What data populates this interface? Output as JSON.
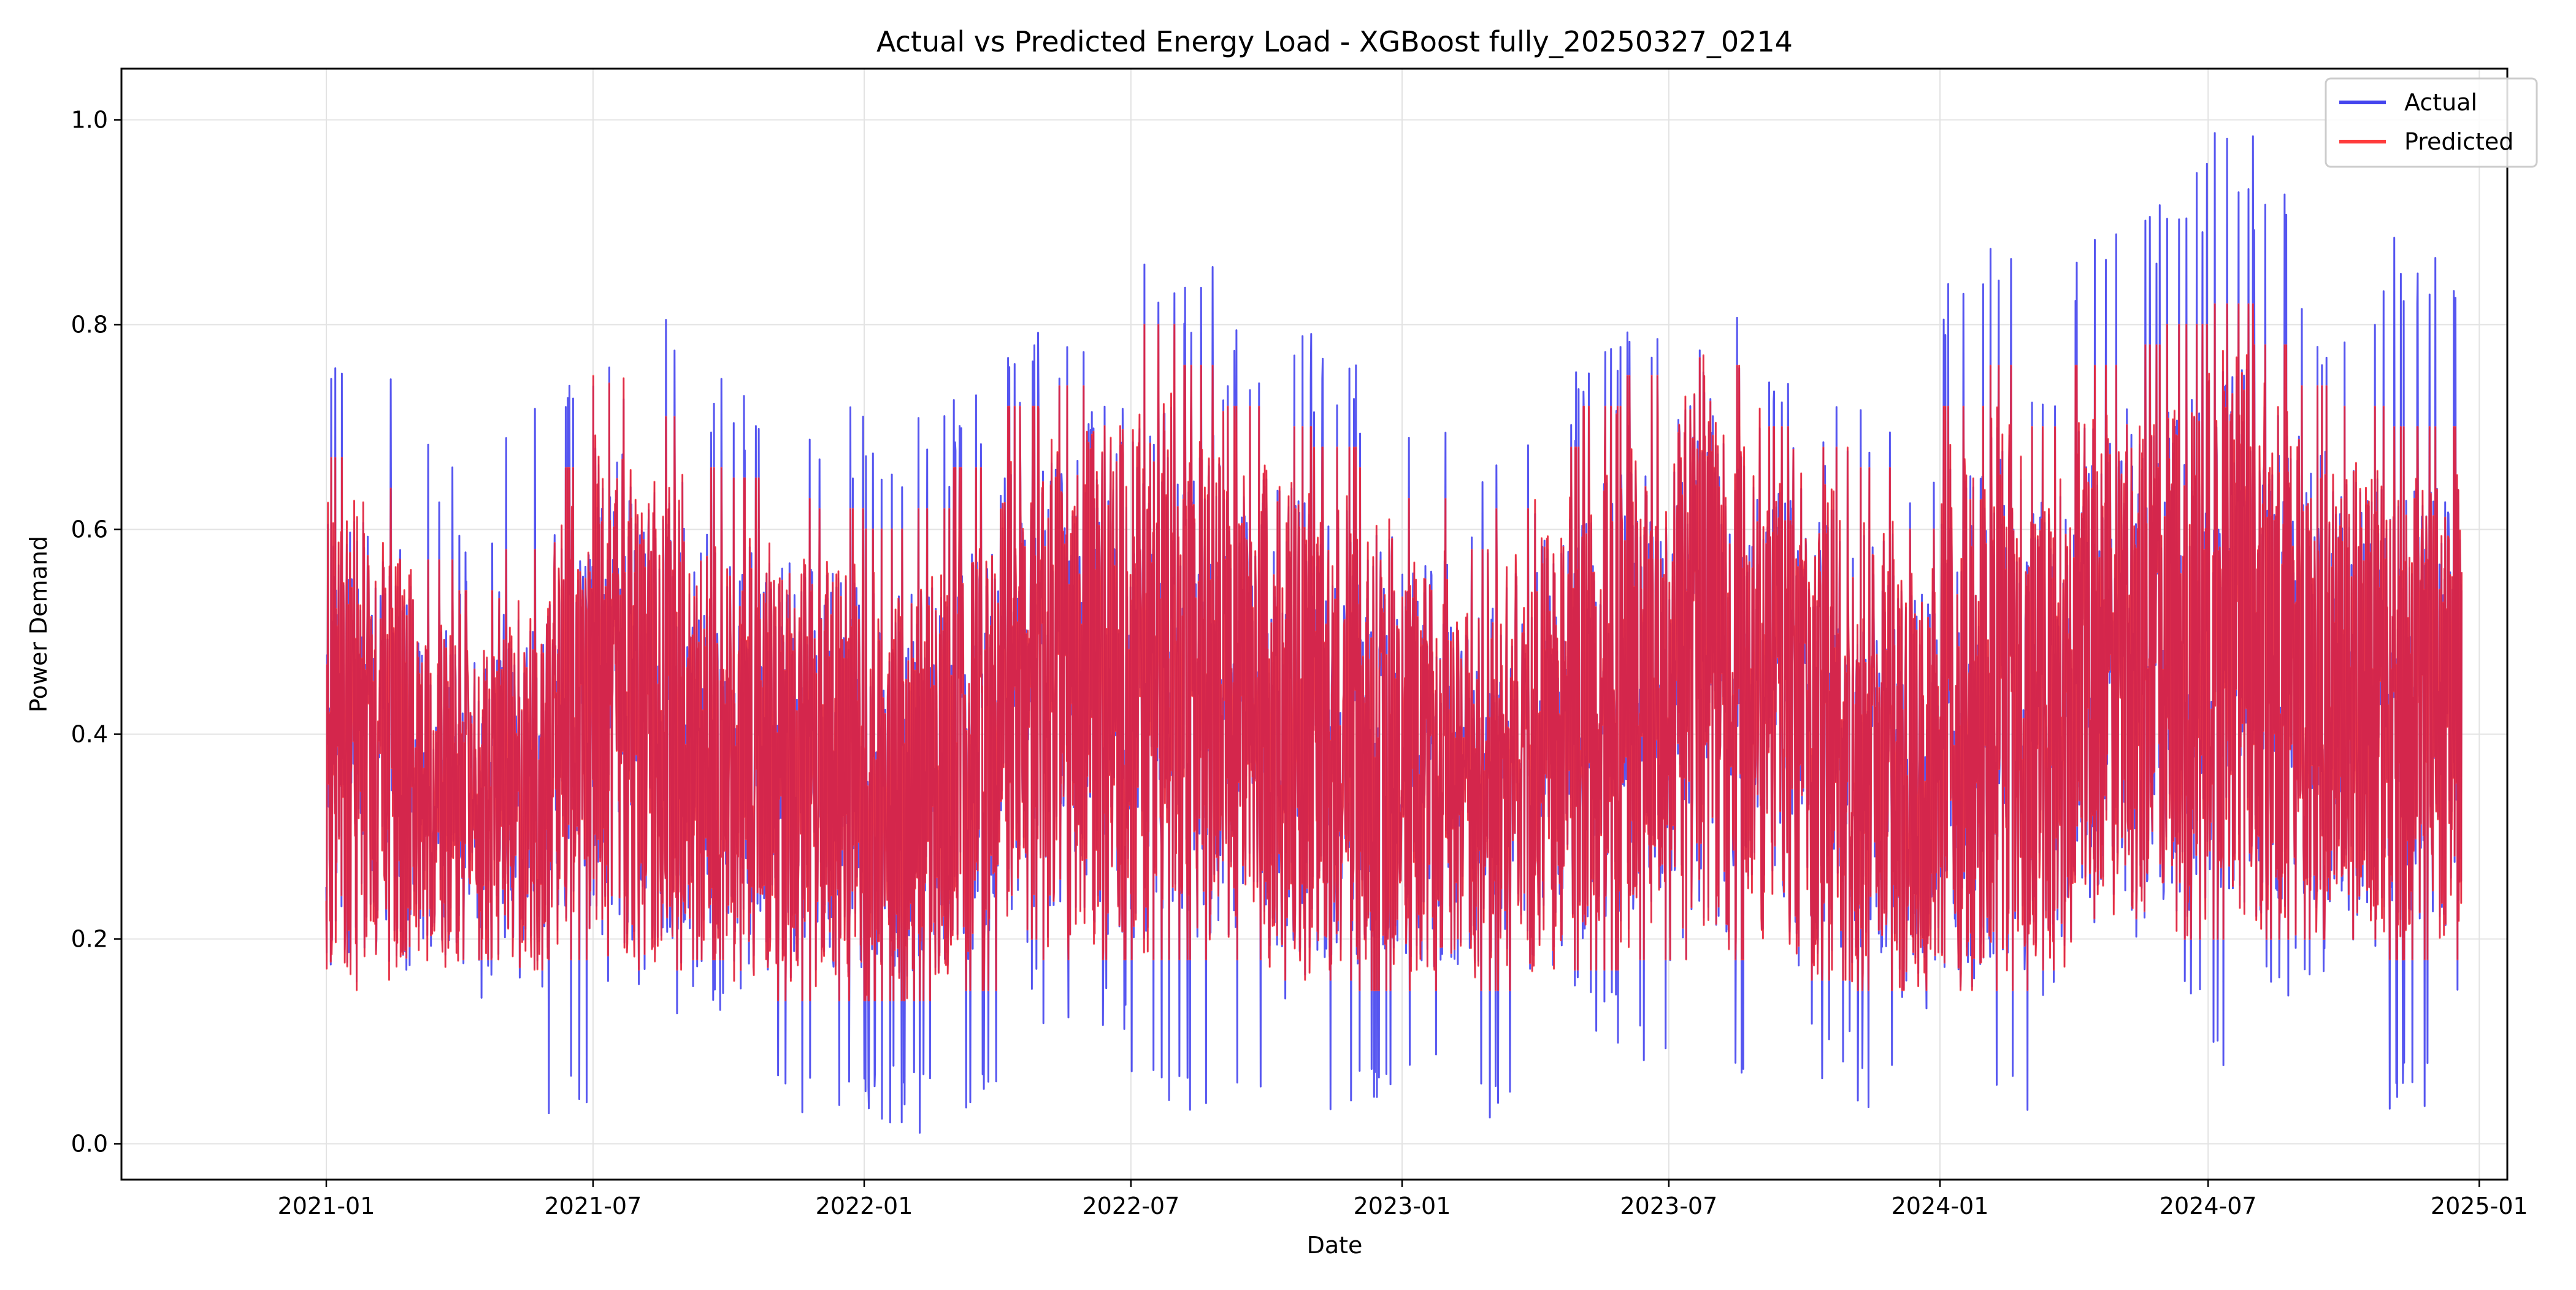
{
  "chart_data": {
    "type": "line",
    "title": "Actual vs Predicted Energy Load - XGBoost fully_20250327_0214",
    "xlabel": "Date",
    "ylabel": "Power Demand",
    "x_start": "2021-01-01",
    "x_end": "2024-12-20",
    "xlim": [
      "2020-08-15",
      "2025-01-20"
    ],
    "ylim": [
      -0.035,
      1.05
    ],
    "x_ticks": [
      "2021-01",
      "2021-07",
      "2022-01",
      "2022-07",
      "2023-01",
      "2023-07",
      "2024-01",
      "2024-07",
      "2025-01"
    ],
    "y_ticks": [
      "0.0",
      "0.2",
      "0.4",
      "0.6",
      "0.8",
      "1.0"
    ],
    "y_tick_values": [
      0.0,
      0.2,
      0.4,
      0.6,
      0.8,
      1.0
    ],
    "grid": true,
    "legend_position": "top-right",
    "monthly_summary": {
      "months": [
        "2021-01",
        "2021-02",
        "2021-03",
        "2021-04",
        "2021-05",
        "2021-06",
        "2021-07",
        "2021-08",
        "2021-09",
        "2021-10",
        "2021-11",
        "2021-12",
        "2022-01",
        "2022-02",
        "2022-03",
        "2022-04",
        "2022-05",
        "2022-06",
        "2022-07",
        "2022-08",
        "2022-09",
        "2022-10",
        "2022-11",
        "2022-12",
        "2023-01",
        "2023-02",
        "2023-03",
        "2023-04",
        "2023-05",
        "2023-06",
        "2023-07",
        "2023-08",
        "2023-09",
        "2023-10",
        "2023-11",
        "2023-12",
        "2024-01",
        "2024-02",
        "2024-03",
        "2024-04",
        "2024-05",
        "2024-06",
        "2024-07",
        "2024-08",
        "2024-09",
        "2024-10",
        "2024-11",
        "2024-12"
      ],
      "actual_min": [
        0.13,
        0.11,
        0.13,
        0.14,
        0.12,
        0.01,
        0.12,
        0.12,
        0.13,
        0.14,
        0.02,
        0.02,
        0.02,
        0.01,
        0.02,
        0.14,
        0.11,
        0.1,
        0.02,
        0.02,
        0.02,
        0.12,
        0.03,
        0.02,
        0.03,
        0.04,
        0.02,
        0.13,
        0.09,
        0.08,
        0.15,
        0.03,
        0.14,
        0.06,
        0.03,
        0.13,
        0.13,
        0.02,
        0.14,
        0.2,
        0.19,
        0.13,
        0.05,
        0.14,
        0.15,
        0.14,
        0.03,
        0.15
      ],
      "actual_max": [
        0.79,
        0.79,
        0.7,
        0.6,
        0.74,
        0.77,
        0.78,
        0.83,
        0.77,
        0.74,
        0.74,
        0.72,
        0.7,
        0.72,
        0.75,
        0.8,
        0.8,
        0.84,
        0.88,
        0.86,
        0.8,
        0.8,
        0.79,
        0.75,
        0.72,
        0.65,
        0.7,
        0.76,
        0.78,
        0.8,
        0.82,
        0.83,
        0.75,
        0.74,
        0.75,
        0.65,
        0.84,
        0.89,
        0.78,
        0.9,
        0.92,
        0.97,
        1.0,
        0.95,
        0.84,
        0.86,
        0.89,
        0.89
      ],
      "predicted_min": [
        0.15,
        0.15,
        0.17,
        0.18,
        0.17,
        0.18,
        0.17,
        0.17,
        0.18,
        0.15,
        0.14,
        0.14,
        0.14,
        0.14,
        0.15,
        0.2,
        0.18,
        0.18,
        0.18,
        0.18,
        0.18,
        0.16,
        0.16,
        0.15,
        0.15,
        0.15,
        0.15,
        0.17,
        0.17,
        0.18,
        0.18,
        0.18,
        0.18,
        0.16,
        0.15,
        0.15,
        0.15,
        0.15,
        0.17,
        0.22,
        0.22,
        0.2,
        0.2,
        0.2,
        0.2,
        0.2,
        0.18,
        0.18
      ],
      "predicted_max": [
        0.67,
        0.64,
        0.57,
        0.54,
        0.58,
        0.66,
        0.75,
        0.71,
        0.66,
        0.65,
        0.63,
        0.62,
        0.6,
        0.62,
        0.66,
        0.72,
        0.74,
        0.78,
        0.8,
        0.76,
        0.72,
        0.7,
        0.68,
        0.66,
        0.63,
        0.58,
        0.62,
        0.68,
        0.72,
        0.75,
        0.8,
        0.76,
        0.7,
        0.68,
        0.66,
        0.6,
        0.72,
        0.76,
        0.7,
        0.76,
        0.78,
        0.8,
        0.82,
        0.78,
        0.74,
        0.72,
        0.7,
        0.7
      ]
    },
    "series": [
      {
        "name": "Actual",
        "color": "#4444ee"
      },
      {
        "name": "Predicted",
        "color": "#ff3b3b"
      }
    ]
  }
}
